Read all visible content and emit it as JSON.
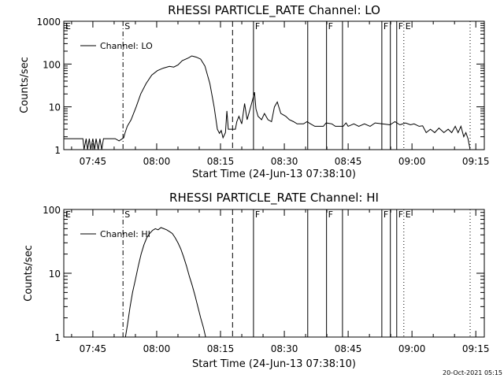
{
  "footer": {
    "date": "20-Oct-2021 05:15"
  },
  "chart_data": [
    {
      "type": "line",
      "title": "RHESSI PARTICLE_RATE Channel: LO",
      "xlabel": "Start Time (24-Jun-13 07:38:10)",
      "ylabel": "Counts/sec",
      "xscale": "time",
      "yscale": "log",
      "xlim": [
        "07:38:10",
        "09:17:00"
      ],
      "ylim": [
        1,
        1000
      ],
      "x_ticks": [
        "07:45",
        "08:00",
        "08:15",
        "08:30",
        "08:45",
        "09:00",
        "09:15"
      ],
      "y_ticks": [
        "1",
        "10",
        "100",
        "1000"
      ],
      "legend": {
        "position": "top-left",
        "entries": [
          "Channel: LO"
        ]
      },
      "markers": [
        {
          "label": "E",
          "time": "07:38:10",
          "style": "none"
        },
        {
          "label": "S",
          "time": "07:52:05",
          "style": "dash-dot"
        },
        {
          "label": "",
          "time": "08:17:50",
          "style": "dashed"
        },
        {
          "label": "F",
          "time": "08:22:45",
          "style": "solid"
        },
        {
          "label": "",
          "time": "08:35:30",
          "style": "solid"
        },
        {
          "label": "F",
          "time": "08:39:55",
          "style": "solid"
        },
        {
          "label": "",
          "time": "08:43:40",
          "style": "solid"
        },
        {
          "label": "F",
          "time": "08:52:55",
          "style": "solid"
        },
        {
          "label": "",
          "time": "08:54:55",
          "style": "solid"
        },
        {
          "label": "F",
          "time": "08:56:25",
          "style": "solid"
        },
        {
          "label": "E",
          "time": "08:58:05",
          "style": "dotted"
        },
        {
          "label": "",
          "time": "09:13:40",
          "style": "dotted"
        }
      ],
      "series": [
        {
          "name": "Channel: LO",
          "points": [
            [
              "07:38:10",
              1.8
            ],
            [
              "07:42:40",
              1.8
            ],
            [
              "07:42:55",
              1
            ],
            [
              "07:43:25",
              1.8
            ],
            [
              "07:43:45",
              1
            ],
            [
              "07:44:10",
              1.8
            ],
            [
              "07:44:30",
              1
            ],
            [
              "07:45:00",
              1.8
            ],
            [
              "07:45:25",
              1
            ],
            [
              "07:45:45",
              1.8
            ],
            [
              "07:46:15",
              1
            ],
            [
              "07:46:40",
              1.8
            ],
            [
              "07:47:05",
              1
            ],
            [
              "07:47:30",
              1.8
            ],
            [
              "07:48:30",
              1.8
            ],
            [
              "07:50:15",
              1.8
            ],
            [
              "07:51:10",
              1.6
            ],
            [
              "07:52:15",
              1.9
            ],
            [
              "07:52:35",
              2.5
            ],
            [
              "07:53:05",
              3.5
            ],
            [
              "07:54:00",
              5
            ],
            [
              "07:55:10",
              10
            ],
            [
              "07:56:15",
              20
            ],
            [
              "07:57:30",
              35
            ],
            [
              "07:58:50",
              55
            ],
            [
              "08:00:10",
              70
            ],
            [
              "08:01:30",
              80
            ],
            [
              "08:03:00",
              88
            ],
            [
              "08:04:00",
              85
            ],
            [
              "08:05:00",
              95
            ],
            [
              "08:06:00",
              120
            ],
            [
              "08:07:30",
              140
            ],
            [
              "08:08:15",
              155
            ],
            [
              "08:09:20",
              145
            ],
            [
              "08:10:20",
              130
            ],
            [
              "08:11:20",
              90
            ],
            [
              "08:12:30",
              35
            ],
            [
              "08:13:30",
              10
            ],
            [
              "08:14:15",
              3
            ],
            [
              "08:14:45",
              2.4
            ],
            [
              "08:15:10",
              2.8
            ],
            [
              "08:15:35",
              1.9
            ],
            [
              "08:16:10",
              2.5
            ],
            [
              "08:16:30",
              8
            ],
            [
              "08:16:50",
              3
            ],
            [
              "08:17:10",
              3
            ],
            [
              "08:18:30",
              3
            ],
            [
              "08:18:50",
              4.5
            ],
            [
              "08:19:20",
              6
            ],
            [
              "08:20:00",
              4
            ],
            [
              "08:20:40",
              12
            ],
            [
              "08:21:15",
              5
            ],
            [
              "08:21:50",
              8
            ],
            [
              "08:22:30",
              14
            ],
            [
              "08:23:00",
              22
            ],
            [
              "08:23:20",
              9
            ],
            [
              "08:23:50",
              6
            ],
            [
              "08:24:40",
              5
            ],
            [
              "08:25:20",
              7
            ],
            [
              "08:26:10",
              5
            ],
            [
              "08:27:00",
              4.5
            ],
            [
              "08:27:40",
              10
            ],
            [
              "08:28:20",
              13
            ],
            [
              "08:29:10",
              7
            ],
            [
              "08:30:20",
              6
            ],
            [
              "08:31:10",
              5
            ],
            [
              "08:32:10",
              4.5
            ],
            [
              "08:33:00",
              4
            ],
            [
              "08:34:30",
              4
            ],
            [
              "08:35:20",
              4.5
            ],
            [
              "08:36:10",
              4
            ],
            [
              "08:37:10",
              3.5
            ],
            [
              "08:39:10",
              3.5
            ],
            [
              "08:39:50",
              4.2
            ],
            [
              "08:41:10",
              4
            ],
            [
              "08:42:00",
              3.5
            ],
            [
              "08:43:50",
              3.5
            ],
            [
              "08:44:30",
              4.2
            ],
            [
              "08:45:00",
              3.5
            ],
            [
              "08:46:20",
              4
            ],
            [
              "08:47:30",
              3.5
            ],
            [
              "08:48:50",
              4
            ],
            [
              "08:50:10",
              3.5
            ],
            [
              "08:51:20",
              4.2
            ],
            [
              "08:53:00",
              4
            ],
            [
              "08:54:50",
              3.8
            ],
            [
              "08:56:00",
              4.5
            ],
            [
              "08:57:10",
              3.8
            ],
            [
              "08:58:30",
              4.2
            ],
            [
              "08:59:40",
              3.8
            ],
            [
              "09:00:30",
              4
            ],
            [
              "09:01:40",
              3.5
            ],
            [
              "09:02:30",
              3.6
            ],
            [
              "09:03:20",
              2.5
            ],
            [
              "09:04:20",
              3
            ],
            [
              "09:05:20",
              2.5
            ],
            [
              "09:06:20",
              3.2
            ],
            [
              "09:07:30",
              2.5
            ],
            [
              "09:08:30",
              3
            ],
            [
              "09:09:20",
              2.5
            ],
            [
              "09:10:10",
              3.5
            ],
            [
              "09:10:50",
              2.5
            ],
            [
              "09:11:30",
              3.5
            ],
            [
              "09:12:10",
              2
            ],
            [
              "09:12:40",
              2.5
            ],
            [
              "09:13:10",
              1.8
            ],
            [
              "09:13:40",
              1
            ]
          ]
        }
      ]
    },
    {
      "type": "line",
      "title": "RHESSI PARTICLE_RATE Channel: HI",
      "xlabel": "Start Time (24-Jun-13 07:38:10)",
      "ylabel": "Counts/sec",
      "xscale": "time",
      "yscale": "log",
      "xlim": [
        "07:38:10",
        "09:17:00"
      ],
      "ylim": [
        1,
        100
      ],
      "x_ticks": [
        "07:45",
        "08:00",
        "08:15",
        "08:30",
        "08:45",
        "09:00",
        "09:15"
      ],
      "y_ticks": [
        "1",
        "10",
        "100"
      ],
      "legend": {
        "position": "top-left",
        "entries": [
          "Channel: HI"
        ]
      },
      "markers": [
        {
          "label": "E",
          "time": "07:38:10",
          "style": "none"
        },
        {
          "label": "S",
          "time": "07:52:05",
          "style": "dash-dot"
        },
        {
          "label": "",
          "time": "08:17:50",
          "style": "dashed"
        },
        {
          "label": "F",
          "time": "08:22:45",
          "style": "solid"
        },
        {
          "label": "",
          "time": "08:35:30",
          "style": "solid"
        },
        {
          "label": "F",
          "time": "08:39:55",
          "style": "solid"
        },
        {
          "label": "",
          "time": "08:43:40",
          "style": "solid"
        },
        {
          "label": "F",
          "time": "08:52:55",
          "style": "solid"
        },
        {
          "label": "",
          "time": "08:54:55",
          "style": "solid"
        },
        {
          "label": "F",
          "time": "08:56:25",
          "style": "solid"
        },
        {
          "label": "E",
          "time": "08:58:05",
          "style": "dotted"
        },
        {
          "label": "",
          "time": "09:13:40",
          "style": "dotted"
        }
      ],
      "series": [
        {
          "name": "Channel: HI",
          "points": [
            [
              "07:52:40",
              1
            ],
            [
              "07:53:10",
              1.6
            ],
            [
              "07:53:45",
              3
            ],
            [
              "07:54:20",
              5
            ],
            [
              "07:55:00",
              8
            ],
            [
              "07:55:40",
              13
            ],
            [
              "07:56:20",
              20
            ],
            [
              "07:57:00",
              28
            ],
            [
              "07:57:40",
              36
            ],
            [
              "07:58:20",
              42
            ],
            [
              "07:59:00",
              47
            ],
            [
              "07:59:40",
              50
            ],
            [
              "08:00:20",
              48
            ],
            [
              "08:01:00",
              52
            ],
            [
              "08:01:40",
              50
            ],
            [
              "08:02:20",
              48
            ],
            [
              "08:03:00",
              45
            ],
            [
              "08:03:40",
              42
            ],
            [
              "08:04:20",
              36
            ],
            [
              "08:05:00",
              30
            ],
            [
              "08:05:40",
              24
            ],
            [
              "08:06:20",
              18
            ],
            [
              "08:07:00",
              13
            ],
            [
              "08:07:40",
              9
            ],
            [
              "08:08:20",
              6.5
            ],
            [
              "08:09:00",
              4.5
            ],
            [
              "08:09:40",
              3
            ],
            [
              "08:10:20",
              2
            ],
            [
              "08:11:00",
              1.4
            ],
            [
              "08:11:30",
              1
            ]
          ]
        }
      ]
    }
  ]
}
